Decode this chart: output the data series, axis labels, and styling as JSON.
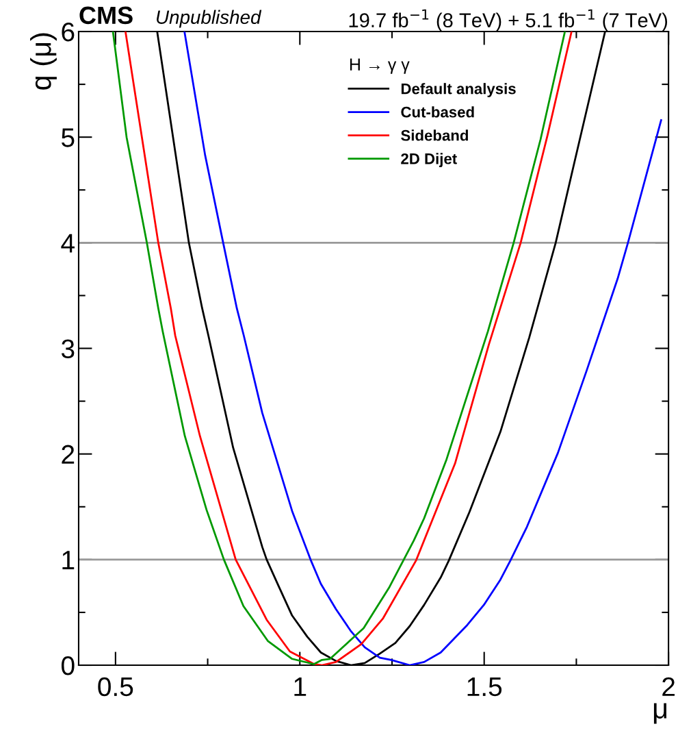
{
  "chart_data": {
    "type": "line",
    "title": "19.7 fb$^{−1}$ (8 TeV) + 5.1 fb$^{−1}$ (7 TeV)",
    "annotations": [
      "CMS",
      "Unpublished"
    ],
    "xlabel": "μ",
    "ylabel": "q (μ)",
    "legend_title": "H → γ γ",
    "xlim": [
      0.4,
      2.0
    ],
    "xticks": [
      0.5,
      1,
      1.5,
      2
    ],
    "ylim": [
      0,
      6
    ],
    "yticks": [
      0,
      1,
      2,
      3,
      4,
      5,
      6
    ],
    "grid": false,
    "legend": "top",
    "line_style": "solid",
    "marker": "none",
    "ref_lines": [
      {
        "axis": "y",
        "value": 1,
        "color": "#999999"
      },
      {
        "axis": "y",
        "value": 4,
        "color": "#999999"
      }
    ],
    "series": [
      {
        "name": "Default analysis",
        "color": "#000000",
        "x": [
          0.613,
          0.699,
          0.735,
          0.752,
          0.819,
          0.898,
          0.91,
          0.941,
          0.979,
          1.02,
          1.057,
          1.098,
          1.139,
          1.176,
          1.217,
          1.259,
          1.298,
          1.337,
          1.382,
          1.404,
          1.46,
          1.544,
          1.622,
          1.694,
          1.744,
          1.828
        ],
        "values": [
          6.0,
          4.0,
          3.38,
          3.12,
          2.06,
          1.12,
          1.0,
          0.76,
          0.47,
          0.27,
          0.12,
          0.04,
          0.0,
          0.02,
          0.11,
          0.21,
          0.37,
          0.57,
          0.83,
          0.99,
          1.45,
          2.21,
          3.1,
          4.0,
          4.75,
          6.0
        ]
      },
      {
        "name": "Cut-based",
        "color": "#0000ff",
        "x": [
          0.687,
          0.743,
          0.792,
          0.829,
          0.848,
          0.898,
          0.979,
          1.029,
          1.057,
          1.098,
          1.139,
          1.176,
          1.217,
          1.248,
          1.298,
          1.337,
          1.382,
          1.454,
          1.499,
          1.544,
          1.571,
          1.616,
          1.7,
          1.778,
          1.862,
          1.89,
          1.98
        ],
        "values": [
          6.0,
          4.83,
          4.0,
          3.38,
          3.12,
          2.39,
          1.46,
          1.0,
          0.77,
          0.53,
          0.32,
          0.17,
          0.07,
          0.05,
          0.0,
          0.03,
          0.12,
          0.38,
          0.57,
          0.81,
          0.99,
          1.31,
          2.01,
          2.79,
          3.66,
          4.0,
          5.16
        ]
      },
      {
        "name": "Sideband",
        "color": "#ff0000",
        "x": [
          0.527,
          0.616,
          0.65,
          0.662,
          0.729,
          0.826,
          0.91,
          0.973,
          1.039,
          1.06,
          1.098,
          1.167,
          1.225,
          1.315,
          1.421,
          1.513,
          1.599,
          1.672,
          1.737
        ],
        "values": [
          6.0,
          4.0,
          3.38,
          3.12,
          2.17,
          1.0,
          0.43,
          0.13,
          0.01,
          0.0,
          0.03,
          0.2,
          0.44,
          0.99,
          1.91,
          3.04,
          4.0,
          5.02,
          6.0
        ]
      },
      {
        "name": "2D Dijet",
        "color": "#009900",
        "x": [
          0.493,
          0.53,
          0.585,
          0.616,
          0.628,
          0.688,
          0.747,
          0.794,
          0.847,
          0.913,
          0.979,
          1.038,
          1.06,
          1.082,
          1.173,
          1.243,
          1.309,
          1.337,
          1.398,
          1.51,
          1.58,
          1.653,
          1.719
        ],
        "values": [
          6.0,
          5.0,
          4.0,
          3.38,
          3.16,
          2.17,
          1.47,
          1.0,
          0.56,
          0.23,
          0.06,
          0.01,
          0.05,
          0.06,
          0.35,
          0.74,
          1.18,
          1.39,
          1.95,
          3.16,
          4.0,
          4.98,
          6.0
        ]
      }
    ]
  }
}
